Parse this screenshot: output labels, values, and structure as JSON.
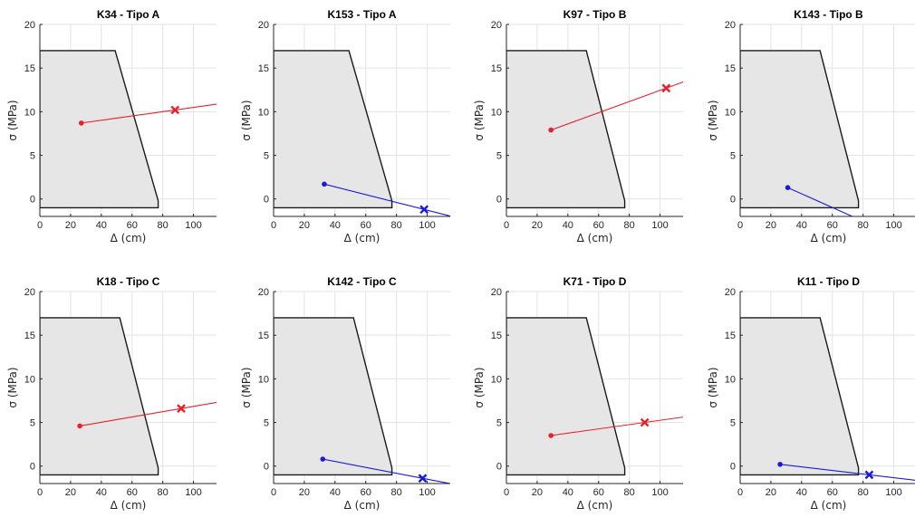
{
  "chart_data": [
    {
      "type": "line",
      "title": "K34 - Tipo A",
      "xlabel": "Δ (cm)",
      "ylabel": "σ (MPa)",
      "xlim": [
        0,
        115
      ],
      "ylim": [
        -2,
        20
      ],
      "xticks": [
        0,
        20,
        40,
        60,
        80,
        100
      ],
      "yticks": [
        0,
        5,
        10,
        15,
        20
      ],
      "grid": true,
      "region": [
        [
          0,
          -1
        ],
        [
          0,
          17
        ],
        [
          49,
          17
        ],
        [
          77,
          -0.2
        ],
        [
          77,
          -1
        ]
      ],
      "series": [
        {
          "color": "#e8202a",
          "start": [
            27,
            8.7
          ],
          "marker": [
            88,
            10.2
          ]
        }
      ]
    },
    {
      "type": "line",
      "title": "K153 - Tipo A",
      "xlabel": "Δ (cm)",
      "ylabel": "σ (MPa)",
      "xlim": [
        0,
        115
      ],
      "ylim": [
        -2,
        20
      ],
      "xticks": [
        0,
        20,
        40,
        60,
        80,
        100
      ],
      "yticks": [
        0,
        5,
        10,
        15,
        20
      ],
      "grid": true,
      "region": [
        [
          0,
          -1
        ],
        [
          0,
          17
        ],
        [
          49,
          17
        ],
        [
          77,
          -0.2
        ],
        [
          77,
          -1
        ]
      ],
      "series": [
        {
          "color": "#1a1adb",
          "start": [
            33,
            1.7
          ],
          "marker": [
            98,
            -1.2
          ]
        }
      ]
    },
    {
      "type": "line",
      "title": "K97 - Tipo B",
      "xlabel": "Δ (cm)",
      "ylabel": "σ (MPa)",
      "xlim": [
        0,
        115
      ],
      "ylim": [
        -2,
        20
      ],
      "xticks": [
        0,
        20,
        40,
        60,
        80,
        100
      ],
      "yticks": [
        0,
        5,
        10,
        15,
        20
      ],
      "grid": true,
      "region": [
        [
          0,
          -1
        ],
        [
          0,
          17
        ],
        [
          52,
          17
        ],
        [
          77,
          -0.2
        ],
        [
          77,
          -1
        ]
      ],
      "series": [
        {
          "color": "#e8202a",
          "start": [
            29,
            7.9
          ],
          "marker": [
            104,
            12.7
          ]
        }
      ]
    },
    {
      "type": "line",
      "title": "K143 - Tipo B",
      "xlabel": "Δ (cm)",
      "ylabel": "σ (MPa)",
      "xlim": [
        0,
        115
      ],
      "ylim": [
        -2,
        20
      ],
      "xticks": [
        0,
        20,
        40,
        60,
        80,
        100
      ],
      "yticks": [
        0,
        5,
        10,
        15,
        20
      ],
      "grid": true,
      "region": [
        [
          0,
          -1
        ],
        [
          0,
          17
        ],
        [
          52,
          17
        ],
        [
          77,
          -0.2
        ],
        [
          77,
          -1
        ]
      ],
      "series": [
        {
          "color": "#1a1adb",
          "start": [
            31,
            1.3
          ],
          "end": [
            73,
            -2
          ]
        }
      ]
    },
    {
      "type": "line",
      "title": "K18 - Tipo C",
      "xlabel": "Δ (cm)",
      "ylabel": "σ (MPa)",
      "xlim": [
        0,
        115
      ],
      "ylim": [
        -2,
        20
      ],
      "xticks": [
        0,
        20,
        40,
        60,
        80,
        100
      ],
      "yticks": [
        0,
        5,
        10,
        15,
        20
      ],
      "grid": true,
      "region": [
        [
          0,
          -1
        ],
        [
          0,
          17
        ],
        [
          52,
          17
        ],
        [
          77,
          -0.2
        ],
        [
          77,
          -1
        ]
      ],
      "series": [
        {
          "color": "#e8202a",
          "start": [
            26,
            4.6
          ],
          "marker": [
            92,
            6.6
          ]
        }
      ]
    },
    {
      "type": "line",
      "title": "K142 - Tipo C",
      "xlabel": "Δ (cm)",
      "ylabel": "σ (MPa)",
      "xlim": [
        0,
        115
      ],
      "ylim": [
        -2,
        20
      ],
      "xticks": [
        0,
        20,
        40,
        60,
        80,
        100
      ],
      "yticks": [
        0,
        5,
        10,
        15,
        20
      ],
      "grid": true,
      "region": [
        [
          0,
          -1
        ],
        [
          0,
          17
        ],
        [
          52,
          17
        ],
        [
          77,
          -0.2
        ],
        [
          77,
          -1
        ]
      ],
      "series": [
        {
          "color": "#1a1adb",
          "start": [
            32,
            0.8
          ],
          "marker": [
            97,
            -1.4
          ]
        }
      ]
    },
    {
      "type": "line",
      "title": "K71 - Tipo D",
      "xlabel": "Δ (cm)",
      "ylabel": "σ (MPa)",
      "xlim": [
        0,
        115
      ],
      "ylim": [
        -2,
        20
      ],
      "xticks": [
        0,
        20,
        40,
        60,
        80,
        100
      ],
      "yticks": [
        0,
        5,
        10,
        15,
        20
      ],
      "grid": true,
      "region": [
        [
          0,
          -1
        ],
        [
          0,
          17
        ],
        [
          52,
          17
        ],
        [
          77,
          -0.2
        ],
        [
          77,
          -1
        ]
      ],
      "series": [
        {
          "color": "#e8202a",
          "start": [
            29,
            3.5
          ],
          "marker": [
            90,
            5.0
          ]
        }
      ]
    },
    {
      "type": "line",
      "title": "K11 - Tipo D",
      "xlabel": "Δ (cm)",
      "ylabel": "σ (MPa)",
      "xlim": [
        0,
        115
      ],
      "ylim": [
        -2,
        20
      ],
      "xticks": [
        0,
        20,
        40,
        60,
        80,
        100
      ],
      "yticks": [
        0,
        5,
        10,
        15,
        20
      ],
      "grid": true,
      "region": [
        [
          0,
          -1
        ],
        [
          0,
          17
        ],
        [
          52,
          17
        ],
        [
          77,
          -0.2
        ],
        [
          77,
          -1
        ]
      ],
      "series": [
        {
          "color": "#1a1adb",
          "start": [
            26,
            0.2
          ],
          "marker": [
            84,
            -1.0
          ]
        }
      ]
    }
  ]
}
